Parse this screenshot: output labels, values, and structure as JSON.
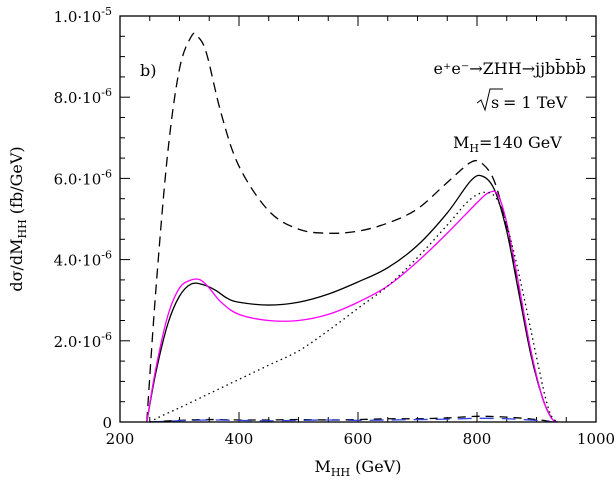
{
  "chart_data": {
    "type": "line",
    "title": "",
    "panel_label": "b)",
    "xlabel": {
      "main": "M",
      "sub": "HH",
      "unit": " (GeV)"
    },
    "ylabel": {
      "prefix": "dσ/dM",
      "sub": "HH",
      "unit": "  (fb/GeV)"
    },
    "xlim": [
      200,
      1000
    ],
    "ylim": [
      0,
      1e-05
    ],
    "x_ticks": [
      {
        "value": 200,
        "label": "200"
      },
      {
        "value": 400,
        "label": "400"
      },
      {
        "value": 600,
        "label": "600"
      },
      {
        "value": 800,
        "label": "800"
      },
      {
        "value": 1000,
        "label": "1000"
      }
    ],
    "y_ticks": [
      {
        "value": 0,
        "label": "0"
      },
      {
        "value": 2e-06,
        "label": "2.0·10",
        "exp": "-6"
      },
      {
        "value": 4e-06,
        "label": "4.0·10",
        "exp": "-6"
      },
      {
        "value": 6e-06,
        "label": "6.0·10",
        "exp": "-6"
      },
      {
        "value": 8e-06,
        "label": "8.0·10",
        "exp": "-6"
      },
      {
        "value": 1e-05,
        "label": "1.0·10",
        "exp": "-5"
      }
    ],
    "annotations": {
      "process": "e⁺e⁻→ZHH→jjbb̄bb̄",
      "energy_sqrt": "s",
      "energy_rest": " = 1 TeV",
      "mass_main": "M",
      "mass_sub": "H",
      "mass_rest": "=140 GeV"
    },
    "series": [
      {
        "color": "#000000",
        "dash": "10,6",
        "x": [
          245,
          260,
          280,
          300,
          320,
          330,
          345,
          370,
          400,
          450,
          500,
          550,
          600,
          650,
          700,
          750,
          790,
          810,
          830,
          850,
          870,
          890,
          910,
          925,
          935
        ],
        "y": [
          0,
          3.2e-06,
          6.6e-06,
          8.7e-06,
          9.5e-06,
          9.5e-06,
          9.1e-06,
          7.6e-06,
          6.3e-06,
          5.2e-06,
          4.75e-06,
          4.65e-06,
          4.7e-06,
          4.9e-06,
          5.25e-06,
          5.9e-06,
          6.4e-06,
          6.35e-06,
          5.9e-06,
          4.8e-06,
          3.3e-06,
          1.7e-06,
          6e-07,
          1e-07,
          0
        ]
      },
      {
        "color": "#000000",
        "dash": "",
        "x": [
          245,
          260,
          280,
          300,
          320,
          340,
          360,
          380,
          400,
          450,
          500,
          550,
          600,
          650,
          700,
          750,
          790,
          810,
          830,
          850,
          870,
          890,
          910,
          925,
          935
        ],
        "y": [
          0,
          1.2e-06,
          2.4e-06,
          3.1e-06,
          3.4e-06,
          3.38e-06,
          3.25e-06,
          3.05e-06,
          2.95e-06,
          2.88e-06,
          2.95e-06,
          3.15e-06,
          3.45e-06,
          3.8e-06,
          4.35e-06,
          5.15e-06,
          5.95e-06,
          6.05e-06,
          5.7e-06,
          4.7e-06,
          3.2e-06,
          1.7e-06,
          6e-07,
          1e-07,
          0
        ]
      },
      {
        "color": "#ff00ff",
        "dash": "",
        "x": [
          245,
          260,
          280,
          300,
          320,
          335,
          350,
          370,
          400,
          450,
          500,
          550,
          600,
          650,
          700,
          750,
          800,
          820,
          835,
          850,
          870,
          890,
          910,
          925,
          935
        ],
        "y": [
          0,
          1.3e-06,
          2.6e-06,
          3.3e-06,
          3.5e-06,
          3.5e-06,
          3.3e-06,
          2.95e-06,
          2.65e-06,
          2.5e-06,
          2.5e-06,
          2.65e-06,
          2.95e-06,
          3.35e-06,
          3.95e-06,
          4.65e-06,
          5.4e-06,
          5.65e-06,
          5.6e-06,
          4.9e-06,
          3.4e-06,
          1.8e-06,
          6e-07,
          1e-07,
          0
        ]
      },
      {
        "color": "#000000",
        "dash": "1.5,3.5",
        "x": [
          250,
          270,
          300,
          350,
          400,
          450,
          500,
          550,
          600,
          650,
          700,
          750,
          790,
          820,
          840,
          860,
          880,
          900,
          915,
          925,
          935
        ],
        "y": [
          0,
          1.5e-07,
          3.5e-07,
          7e-07,
          1.05e-06,
          1.4e-06,
          1.75e-06,
          2.25e-06,
          2.8e-06,
          3.35e-06,
          4.05e-06,
          4.85e-06,
          5.5e-06,
          5.65e-06,
          5.3e-06,
          4.3e-06,
          3e-06,
          1.6e-06,
          6e-07,
          1.5e-07,
          0
        ]
      },
      {
        "color": "#000000",
        "dash": "8,6",
        "x": [
          250,
          300,
          350,
          400,
          450,
          500,
          550,
          600,
          650,
          700,
          750,
          800,
          850,
          900,
          930
        ],
        "y": [
          0,
          4e-08,
          6e-08,
          5e-08,
          5e-08,
          6e-08,
          5e-08,
          6e-08,
          8e-08,
          8e-08,
          1e-07,
          1.4e-07,
          1.2e-07,
          6e-08,
          0
        ]
      },
      {
        "color": "#3344dd",
        "dash": "14,8",
        "x": [
          250,
          300,
          350,
          400,
          450,
          500,
          550,
          600,
          650,
          700,
          750,
          800,
          850,
          900,
          930
        ],
        "y": [
          0,
          3e-08,
          5e-08,
          4e-08,
          3e-08,
          4e-08,
          5e-08,
          4e-08,
          5e-08,
          6e-08,
          7e-08,
          9e-08,
          8e-08,
          4e-08,
          0
        ]
      }
    ]
  }
}
